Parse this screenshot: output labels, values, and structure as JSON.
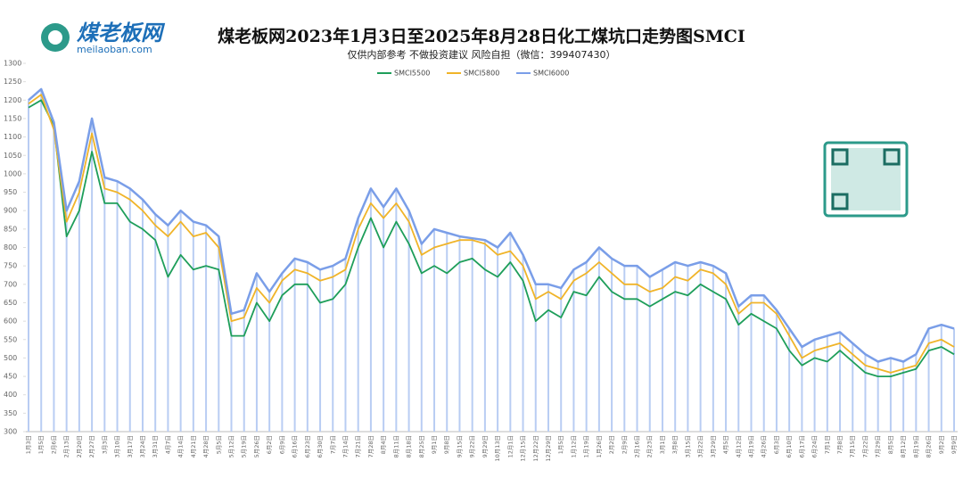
{
  "logo": {
    "name": "煤老板网",
    "url": "meilaoban.com"
  },
  "chart_data": {
    "type": "line",
    "title": "煤老板网2023年1月3日至2025年8月28日化工煤坑口走势图SMCI",
    "subtitle": "仅供内部参考 不做投资建议 风险自担（微信：399407430）",
    "categories": [
      "1月3日",
      "1月5日",
      "2月6日",
      "2月13日",
      "2月20日",
      "2月27日",
      "3月3日",
      "3月10日",
      "3月17日",
      "3月24日",
      "3月31日",
      "4月7日",
      "4月14日",
      "4月21日",
      "4月28日",
      "5月5日",
      "5月12日",
      "5月19日",
      "5月26日",
      "6月2日",
      "6月9日",
      "6月16日",
      "6月23日",
      "6月30日",
      "7月7日",
      "7月14日",
      "7月21日",
      "7月28日",
      "8月4日",
      "8月11日",
      "8月18日",
      "8月25日",
      "9月1日",
      "9月8日",
      "9月15日",
      "9月22日",
      "9月29日",
      "10月13日",
      "12月1日",
      "12月15日",
      "12月22日",
      "12月29日",
      "1月5日",
      "1月12日",
      "1月19日",
      "1月26日",
      "2月2日",
      "2月9日",
      "2月16日",
      "2月23日",
      "3月1日",
      "3月8日",
      "3月15日",
      "3月22日",
      "3月29日",
      "4月5日",
      "4月12日",
      "4月19日",
      "4月26日",
      "6月3日",
      "6月10日",
      "6月17日",
      "6月24日",
      "7月1日",
      "7月8日",
      "7月15日",
      "7月22日",
      "7月29日",
      "8月5日",
      "8月12日",
      "8月19日",
      "8月26日",
      "9月2日",
      "9月9日"
    ],
    "series": [
      {
        "name": "SMCI5500",
        "color": "#1e9e5a",
        "values": [
          1180,
          1200,
          1130,
          830,
          900,
          1060,
          920,
          920,
          870,
          850,
          820,
          720,
          780,
          740,
          750,
          740,
          560,
          560,
          650,
          600,
          670,
          700,
          700,
          650,
          660,
          700,
          800,
          880,
          800,
          870,
          810,
          730,
          750,
          730,
          760,
          770,
          740,
          720,
          760,
          710,
          600,
          630,
          610,
          680,
          670,
          720,
          680,
          660,
          660,
          640,
          660,
          680,
          670,
          700,
          680,
          660,
          590,
          620,
          600,
          580,
          520,
          480,
          500,
          490,
          520,
          490,
          460,
          450,
          450,
          460,
          470,
          520,
          530,
          510
        ]
      },
      {
        "name": "SMCI5800",
        "color": "#f0b429",
        "values": [
          1190,
          1215,
          1120,
          870,
          950,
          1110,
          960,
          950,
          930,
          900,
          860,
          830,
          870,
          830,
          840,
          800,
          600,
          610,
          690,
          650,
          710,
          740,
          730,
          710,
          720,
          740,
          850,
          920,
          880,
          920,
          870,
          780,
          800,
          810,
          820,
          820,
          810,
          780,
          790,
          750,
          660,
          680,
          660,
          710,
          730,
          760,
          730,
          700,
          700,
          680,
          690,
          720,
          710,
          740,
          730,
          700,
          620,
          650,
          650,
          620,
          560,
          500,
          520,
          530,
          540,
          510,
          480,
          470,
          460,
          470,
          480,
          540,
          550,
          530
        ]
      },
      {
        "name": "SMCI6000",
        "color": "#7a9ee8",
        "values": [
          1200,
          1230,
          1140,
          900,
          980,
          1150,
          990,
          980,
          960,
          930,
          890,
          860,
          900,
          870,
          860,
          830,
          620,
          630,
          730,
          680,
          730,
          770,
          760,
          740,
          750,
          770,
          880,
          960,
          910,
          960,
          900,
          810,
          850,
          840,
          830,
          825,
          820,
          800,
          840,
          780,
          700,
          700,
          690,
          740,
          760,
          800,
          770,
          750,
          750,
          720,
          740,
          760,
          750,
          760,
          750,
          730,
          640,
          670,
          670,
          630,
          580,
          530,
          550,
          560,
          570,
          540,
          510,
          490,
          500,
          490,
          510,
          580,
          590,
          580
        ]
      }
    ],
    "ylim": [
      300,
      1300
    ],
    "yticks": [
      300,
      350,
      400,
      450,
      500,
      550,
      600,
      650,
      700,
      750,
      800,
      850,
      900,
      950,
      1000,
      1050,
      1100,
      1150,
      1200,
      1250,
      1300
    ],
    "grid": false
  }
}
